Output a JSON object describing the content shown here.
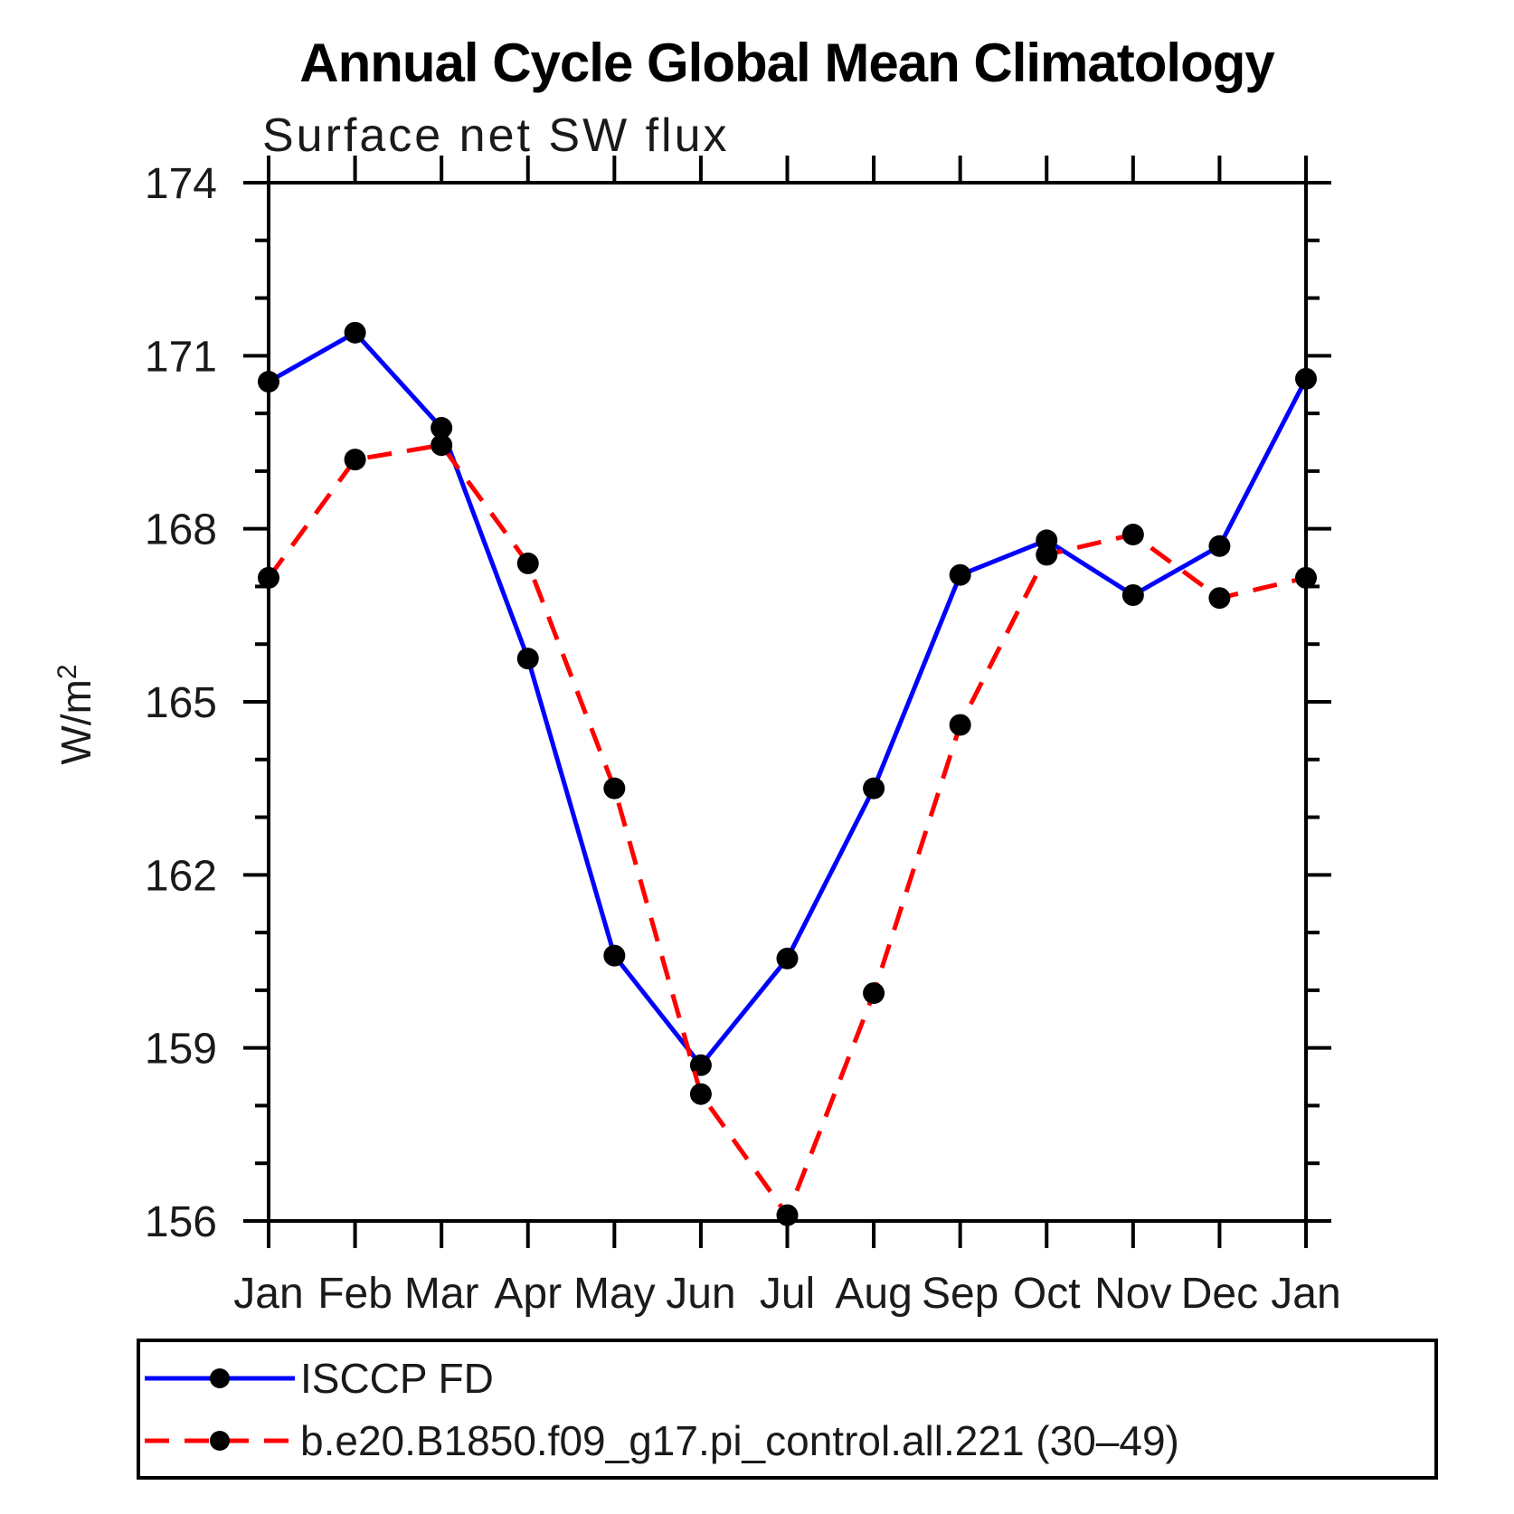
{
  "page": {
    "background": "#FFFFFF",
    "axis_color": "#000000",
    "text_color": "#000000"
  },
  "chart_data": {
    "type": "line",
    "title": "Annual Cycle Global Mean Climatology",
    "subtitle": "Surface net SW flux",
    "ylabel_base": "W/m",
    "ylabel_exp": "2",
    "x_labels": [
      "Jan",
      "Feb",
      "Mar",
      "Apr",
      "May",
      "Jun",
      "Jul",
      "Aug",
      "Sep",
      "Oct",
      "Nov",
      "Dec",
      "Jan"
    ],
    "ylim": [
      156,
      174
    ],
    "yticks": [
      156,
      159,
      162,
      165,
      168,
      171,
      174
    ],
    "minor_tick_step": 1,
    "grid": false,
    "legend_position": "bottom",
    "marker": "filled-circle",
    "marker_color": "#000000",
    "series": [
      {
        "name": "ISCCP FD",
        "color": "#0000FF",
        "style": "solid",
        "values": [
          170.55,
          171.4,
          169.75,
          165.75,
          160.6,
          158.7,
          160.55,
          163.5,
          167.2,
          167.8,
          166.85,
          167.7,
          170.6
        ]
      },
      {
        "name": "b.e20.B1850.f09_g17.pi_control.all.221 (30‒49)",
        "color": "#FF0000",
        "style": "dashed",
        "values": [
          167.15,
          169.2,
          169.45,
          167.4,
          163.5,
          158.2,
          156.1,
          159.95,
          164.6,
          167.55,
          167.9,
          166.8,
          167.15
        ]
      }
    ]
  }
}
